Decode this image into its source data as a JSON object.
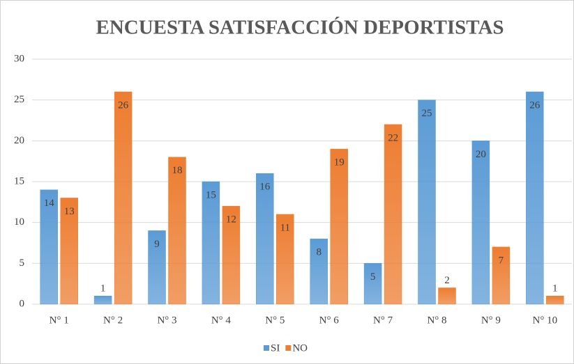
{
  "chart_data": {
    "type": "bar",
    "title": "ENCUESTA SATISFACCIÓN DEPORTISTAS",
    "categories": [
      "N° 1",
      "N° 2",
      "N° 3",
      "N° 4",
      "N° 5",
      "N° 6",
      "N° 7",
      "N° 8",
      "N° 9",
      "N° 10"
    ],
    "series": [
      {
        "name": "SI",
        "color": "#5b9bd5",
        "values": [
          14,
          1,
          9,
          15,
          16,
          8,
          5,
          25,
          20,
          26
        ]
      },
      {
        "name": "NO",
        "color": "#ed7d31",
        "values": [
          13,
          26,
          18,
          12,
          11,
          19,
          22,
          2,
          7,
          1
        ]
      }
    ],
    "ylim": [
      0,
      30
    ],
    "yticks": [
      0,
      5,
      10,
      15,
      20,
      25,
      30
    ],
    "grid": true,
    "legend": "bottom"
  }
}
